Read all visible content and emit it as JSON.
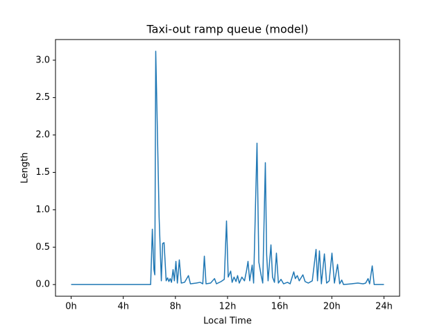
{
  "chart_data": {
    "type": "line",
    "title": "Taxi-out ramp queue (model)",
    "x_label": "Local Time",
    "y_label": "Length",
    "x": [
      0,
      1,
      2,
      3,
      4,
      5,
      6.1,
      6.23,
      6.35,
      6.42,
      6.49,
      6.6,
      6.75,
      6.92,
      7.02,
      7.13,
      7.29,
      7.4,
      7.5,
      7.6,
      7.7,
      7.82,
      7.92,
      8.04,
      8.15,
      8.3,
      8.45,
      8.7,
      9.0,
      9.15,
      9.6,
      9.9,
      10.1,
      10.22,
      10.35,
      10.7,
      11.0,
      11.15,
      11.5,
      11.75,
      11.92,
      12.05,
      12.24,
      12.35,
      12.5,
      12.65,
      12.77,
      12.9,
      13.1,
      13.3,
      13.45,
      13.57,
      13.7,
      13.89,
      14.0,
      14.26,
      14.4,
      14.58,
      14.7,
      14.9,
      15.0,
      15.11,
      15.2,
      15.33,
      15.45,
      15.6,
      15.75,
      15.9,
      16.1,
      16.3,
      16.6,
      16.8,
      17.08,
      17.2,
      17.35,
      17.5,
      17.78,
      17.95,
      18.2,
      18.5,
      18.79,
      18.9,
      19.05,
      19.2,
      19.43,
      19.6,
      19.8,
      20.01,
      20.2,
      20.44,
      20.6,
      20.76,
      20.9,
      21.5,
      22.0,
      22.4,
      22.6,
      22.78,
      22.9,
      23.1,
      23.25,
      24
    ],
    "series": [
      {
        "color": "#1f77b4",
        "values": [
          0,
          0,
          0,
          0,
          0,
          0,
          0,
          0.74,
          0.2,
          0.13,
          3.12,
          2.2,
          0.9,
          0.05,
          0.55,
          0.56,
          0.05,
          0.09,
          0.04,
          0.08,
          0.03,
          0.2,
          0.05,
          0.31,
          0.02,
          0.33,
          0.02,
          0.03,
          0.12,
          0.01,
          0.02,
          0.03,
          0.01,
          0.38,
          0.01,
          0.02,
          0.08,
          0.01,
          0.04,
          0.07,
          0.85,
          0.1,
          0.18,
          0.03,
          0.1,
          0.04,
          0.12,
          0.02,
          0.1,
          0.05,
          0.18,
          0.31,
          0.05,
          0.26,
          0.02,
          1.89,
          0.3,
          0.12,
          0.02,
          1.63,
          0.4,
          0.05,
          0.25,
          0.53,
          0.1,
          0.03,
          0.42,
          0.02,
          0.07,
          0.01,
          0.03,
          0.01,
          0.17,
          0.08,
          0.12,
          0.05,
          0.13,
          0.04,
          0.02,
          0.05,
          0.47,
          0.05,
          0.45,
          0.01,
          0.41,
          0.02,
          0.05,
          0.42,
          0.02,
          0.27,
          0.01,
          0.06,
          0,
          0.01,
          0.02,
          0.01,
          0.02,
          0.08,
          0.01,
          0.25,
          0,
          0
        ]
      }
    ],
    "xlim": [
      -1.2,
      25.2
    ],
    "xticks": [
      {
        "value": 0,
        "label": "0h"
      },
      {
        "value": 4,
        "label": "4h"
      },
      {
        "value": 8,
        "label": "8h"
      },
      {
        "value": 12,
        "label": "12h"
      },
      {
        "value": 16,
        "label": "16h"
      },
      {
        "value": 20,
        "label": "20h"
      },
      {
        "value": 24,
        "label": "24h"
      }
    ],
    "ylim": [
      -0.156,
      3.276
    ],
    "yticks": [
      {
        "value": 0,
        "label": "0.0"
      },
      {
        "value": 0.5,
        "label": "0.5"
      },
      {
        "value": 1,
        "label": "1.0"
      },
      {
        "value": 1.5,
        "label": "1.5"
      },
      {
        "value": 2,
        "label": "2.0"
      },
      {
        "value": 2.5,
        "label": "2.5"
      },
      {
        "value": 3,
        "label": "3.0"
      }
    ],
    "grid": false
  }
}
